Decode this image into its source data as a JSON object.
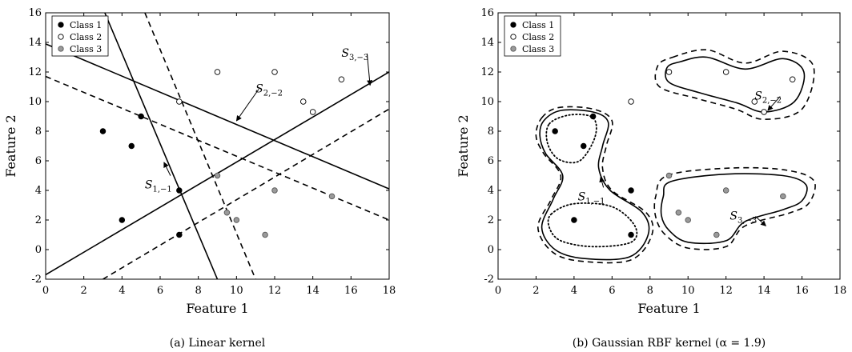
{
  "chart_data": [
    {
      "type": "scatter",
      "panel": "a",
      "caption": "(a) Linear kernel",
      "xlabel": "Feature 1",
      "ylabel": "Feature 2",
      "xlim": [
        0,
        18
      ],
      "ylim": [
        -2,
        16
      ],
      "xticks": [
        "0",
        "2",
        "4",
        "6",
        "8",
        "10",
        "12",
        "14",
        "16",
        "18"
      ],
      "yticks": [
        "-2",
        "0",
        "2",
        "4",
        "6",
        "8",
        "10",
        "12",
        "14",
        "16"
      ],
      "legend": {
        "position": "top-left",
        "entries": [
          "Class 1",
          "Class 2",
          "Class 3"
        ]
      },
      "series": [
        {
          "name": "Class 1",
          "marker": "filled-black",
          "points": [
            [
              3,
              8
            ],
            [
              4,
              2
            ],
            [
              4.5,
              7
            ],
            [
              5,
              9
            ],
            [
              7,
              4
            ],
            [
              7,
              1
            ]
          ]
        },
        {
          "name": "Class 2",
          "marker": "open",
          "points": [
            [
              7,
              10
            ],
            [
              9,
              12
            ],
            [
              12,
              12
            ],
            [
              13.5,
              10
            ],
            [
              14,
              9.3
            ],
            [
              15.5,
              11.5
            ]
          ]
        },
        {
          "name": "Class 3",
          "marker": "filled-gray",
          "points": [
            [
              9,
              5
            ],
            [
              9.5,
              2.5
            ],
            [
              10,
              2
            ],
            [
              11.5,
              1
            ],
            [
              12,
              4
            ],
            [
              15,
              3.6
            ]
          ]
        }
      ],
      "lines": [
        {
          "style": "solid",
          "from": [
            3.1,
            16
          ],
          "to": [
            9,
            -2
          ]
        },
        {
          "style": "dashed",
          "from": [
            5.2,
            16
          ],
          "to": [
            11,
            -2
          ]
        },
        {
          "style": "solid",
          "from": [
            0,
            13.9
          ],
          "to": [
            18,
            4.1
          ]
        },
        {
          "style": "dashed",
          "from": [
            0,
            11.7
          ],
          "to": [
            18,
            2
          ]
        },
        {
          "style": "solid",
          "from": [
            0,
            -1.7
          ],
          "to": [
            18,
            12
          ]
        },
        {
          "style": "dashed",
          "from": [
            3,
            -2
          ],
          "to": [
            18,
            9.5
          ]
        }
      ],
      "annotations": [
        {
          "label": "S_{1,-1}",
          "text_at": [
            5.2,
            4.4
          ],
          "arrow_to": [
            6.2,
            5.9
          ]
        },
        {
          "label": "S_{2,-2}",
          "text_at": [
            11,
            10.9
          ],
          "arrow_to": [
            10,
            8.7
          ]
        },
        {
          "label": "S_{3,-3}",
          "text_at": [
            15.5,
            13.3
          ],
          "arrow_to": [
            17,
            11.1
          ]
        }
      ]
    },
    {
      "type": "scatter",
      "panel": "b",
      "caption": "(b) Gaussian RBF kernel (α = 1.9)",
      "xlabel": "Feature 1",
      "ylabel": "Feature 2",
      "xlim": [
        0,
        18
      ],
      "ylim": [
        -2,
        16
      ],
      "xticks": [
        "0",
        "2",
        "4",
        "6",
        "8",
        "10",
        "12",
        "14",
        "16",
        "18"
      ],
      "yticks": [
        "-2",
        "0",
        "2",
        "4",
        "6",
        "8",
        "10",
        "12",
        "14",
        "16"
      ],
      "legend": {
        "position": "top-left",
        "entries": [
          "Class 1",
          "Class 2",
          "Class 3"
        ]
      },
      "series": [
        {
          "name": "Class 1",
          "marker": "filled-black",
          "points": [
            [
              3,
              8
            ],
            [
              4,
              2
            ],
            [
              4.5,
              7
            ],
            [
              5,
              9
            ],
            [
              7,
              4
            ],
            [
              7,
              1
            ]
          ]
        },
        {
          "name": "Class 2",
          "marker": "open",
          "points": [
            [
              7,
              10
            ],
            [
              9,
              12
            ],
            [
              12,
              12
            ],
            [
              13.5,
              10
            ],
            [
              14,
              9.3
            ],
            [
              15.5,
              11.5
            ]
          ]
        },
        {
          "name": "Class 3",
          "marker": "filled-gray",
          "points": [
            [
              9,
              5
            ],
            [
              9.5,
              2.5
            ],
            [
              10,
              2
            ],
            [
              11.5,
              1
            ],
            [
              12,
              4
            ],
            [
              15,
              3.6
            ]
          ]
        }
      ],
      "contours": [
        {
          "style": "dashed",
          "points": [
            [
              9.2,
              13
            ],
            [
              11,
              13.5
            ],
            [
              13,
              12.6
            ],
            [
              15,
              13.4
            ],
            [
              16.6,
              12.4
            ],
            [
              16,
              9.5
            ],
            [
              14,
              8.8
            ],
            [
              12.5,
              9.5
            ],
            [
              10.5,
              10.2
            ],
            [
              8.5,
              11
            ],
            [
              8.4,
              12.4
            ]
          ]
        },
        {
          "style": "solid",
          "points": [
            [
              9.6,
              12.7
            ],
            [
              11,
              13
            ],
            [
              13,
              12.2
            ],
            [
              15,
              12.9
            ],
            [
              16.1,
              12
            ],
            [
              15.6,
              10
            ],
            [
              14,
              9.3
            ],
            [
              12.6,
              9.9
            ],
            [
              10.6,
              10.6
            ],
            [
              9,
              11.3
            ],
            [
              8.9,
              12.3
            ]
          ]
        },
        {
          "style": "dashed",
          "points": [
            [
              8.9,
              5
            ],
            [
              12,
              5.5
            ],
            [
              15,
              5.4
            ],
            [
              16.6,
              4.7
            ],
            [
              16.4,
              3.2
            ],
            [
              15.4,
              2.5
            ],
            [
              13,
              1.6
            ],
            [
              12,
              0.2
            ],
            [
              10,
              0.1
            ],
            [
              8.8,
              1
            ],
            [
              8.3,
              2.2
            ],
            [
              8.3,
              3.6
            ]
          ]
        },
        {
          "style": "solid",
          "points": [
            [
              9.1,
              4.6
            ],
            [
              12,
              5.1
            ],
            [
              15,
              5
            ],
            [
              16.2,
              4.4
            ],
            [
              16,
              3.3
            ],
            [
              15,
              2.7
            ],
            [
              13,
              1.9
            ],
            [
              12,
              0.6
            ],
            [
              10,
              0.5
            ],
            [
              9,
              1.3
            ],
            [
              8.6,
              2.3
            ],
            [
              8.7,
              3.6
            ]
          ]
        },
        {
          "style": "dashed",
          "points": [
            [
              2.3,
              8.9
            ],
            [
              3.2,
              9.6
            ],
            [
              5,
              9.5
            ],
            [
              6,
              8.7
            ],
            [
              5.7,
              7
            ],
            [
              5.5,
              5.5
            ],
            [
              6,
              4
            ],
            [
              7.8,
              2.5
            ],
            [
              8.1,
              1
            ],
            [
              7,
              -0.7
            ],
            [
              4.5,
              -0.8
            ],
            [
              2.9,
              -0.2
            ],
            [
              2.1,
              1.5
            ],
            [
              2.8,
              3.4
            ],
            [
              3.3,
              5
            ],
            [
              2.4,
              6.5
            ],
            [
              2,
              7.7
            ]
          ]
        },
        {
          "style": "solid",
          "points": [
            [
              2.4,
              8.7
            ],
            [
              3.3,
              9.4
            ],
            [
              5,
              9.3
            ],
            [
              5.8,
              8.6
            ],
            [
              5.5,
              7
            ],
            [
              5.3,
              5.5
            ],
            [
              5.9,
              4
            ],
            [
              7.6,
              2.5
            ],
            [
              7.9,
              1
            ],
            [
              6.9,
              -0.5
            ],
            [
              4.5,
              -0.6
            ],
            [
              3,
              0
            ],
            [
              2.3,
              1.5
            ],
            [
              2.9,
              3.4
            ],
            [
              3.4,
              5
            ],
            [
              2.5,
              6.5
            ],
            [
              2.2,
              7.7
            ]
          ]
        },
        {
          "style": "dotted",
          "points": [
            [
              2.7,
              8.5
            ],
            [
              3.8,
              9.1
            ],
            [
              5,
              8.9
            ],
            [
              5.1,
              7.6
            ],
            [
              4.3,
              6
            ],
            [
              3.2,
              6.1
            ],
            [
              2.6,
              7.2
            ]
          ]
        },
        {
          "style": "dotted",
          "points": [
            [
              2.8,
              2.4
            ],
            [
              4,
              3.1
            ],
            [
              6,
              2.9
            ],
            [
              7.2,
              1.6
            ],
            [
              7,
              0.5
            ],
            [
              5,
              0.2
            ],
            [
              3.3,
              0.6
            ],
            [
              2.7,
              1.5
            ]
          ]
        }
      ],
      "annotations": [
        {
          "label": "S_{1,-1}",
          "text_at": [
            4.2,
            3.6
          ],
          "arrow_to": [
            5.4,
            4.9
          ]
        },
        {
          "label": "S_{2,-2}",
          "text_at": [
            13.5,
            10.4
          ],
          "arrow_to": [
            14.2,
            9.4
          ]
        },
        {
          "label": "S_{3,-3}",
          "text_at": [
            12.2,
            2.3
          ],
          "arrow_to": [
            14.1,
            1.6
          ]
        }
      ]
    }
  ]
}
